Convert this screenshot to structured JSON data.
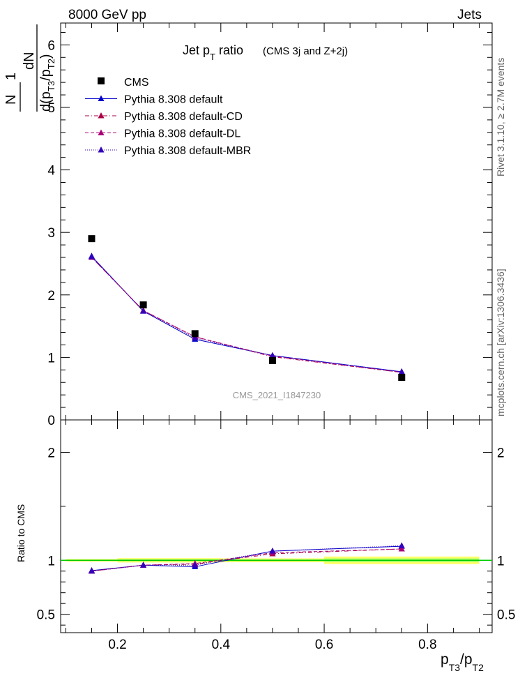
{
  "header": {
    "left": "8000 GeV pp",
    "right": "Jets"
  },
  "side_text": {
    "rivet": "Rivet 3.1.10, ≥ 2.7M events",
    "mcplots": "mcplots.cern.ch [arXiv:1306.3436]"
  },
  "watermark": "CMS_2021_I1847230",
  "colors": {
    "cms": "#000000",
    "default": "#0000cc",
    "cd": "#aa0044",
    "dl": "#aa0077",
    "mbr": "#3300bb",
    "ratio_line": "#00cc00",
    "band_outer": "#ffff66",
    "band_inner": "#aaff66"
  },
  "chart_data": [
    {
      "type": "line",
      "title": "Jet p_T ratio (CMS 3j and Z+2j)",
      "title_main": "Jet p",
      "title_sub": "T",
      "title_rest": " ratio",
      "title_note": "(CMS 3j and Z+2j)",
      "ylabel_top": "1",
      "ylabel_n": "N",
      "ylabel_dn": "dN",
      "ylabel_den": "d(p",
      "ylim": [
        0,
        6.35
      ],
      "xlim": [
        0.09,
        0.925
      ],
      "yticks": [
        0,
        1,
        2,
        3,
        4,
        5,
        6
      ],
      "ytick_labels": [
        "0",
        "1",
        "2",
        "3",
        "4",
        "5",
        "6"
      ],
      "x": [
        0.15,
        0.25,
        0.35,
        0.5,
        0.75
      ],
      "series": [
        {
          "name": "CMS",
          "values": [
            2.9,
            1.84,
            1.38,
            0.95,
            0.68
          ]
        },
        {
          "name": "Pythia 8.308 default",
          "values": [
            2.62,
            1.74,
            1.29,
            1.03,
            0.77
          ]
        },
        {
          "name": "Pythia 8.308 default-CD",
          "values": [
            2.6,
            1.75,
            1.33,
            1.01,
            0.76
          ]
        },
        {
          "name": "Pythia 8.308 default-DL",
          "values": [
            2.6,
            1.75,
            1.33,
            1.02,
            0.76
          ]
        },
        {
          "name": "Pythia 8.308 default-MBR",
          "values": [
            2.61,
            1.74,
            1.31,
            1.03,
            0.77
          ]
        }
      ]
    },
    {
      "type": "line",
      "ylabel": "Ratio to CMS",
      "xlabel_main": "p",
      "xlabel_sub1": "T3",
      "xlabel_mid": "/p",
      "xlabel_sub2": "T2",
      "ylim": [
        0.33,
        2.3
      ],
      "xlim": [
        0.09,
        0.925
      ],
      "yticks": [
        0.5,
        1,
        2
      ],
      "ytick_labels": [
        "0.5",
        "1",
        "2"
      ],
      "xticks": [
        0.2,
        0.4,
        0.6,
        0.8
      ],
      "xtick_labels": [
        "0.2",
        "0.4",
        "0.6",
        "0.8"
      ],
      "x": [
        0.15,
        0.25,
        0.35,
        0.5,
        0.75
      ],
      "series": [
        {
          "name": "Pythia 8.308 default",
          "values": [
            0.905,
            0.955,
            0.94,
            1.085,
            1.13
          ]
        },
        {
          "name": "Pythia 8.308 default-CD",
          "values": [
            0.9,
            0.955,
            0.965,
            1.06,
            1.105
          ]
        },
        {
          "name": "Pythia 8.308 default-DL",
          "values": [
            0.9,
            0.955,
            0.97,
            1.07,
            1.105
          ]
        },
        {
          "name": "Pythia 8.308 default-MBR",
          "values": [
            0.9,
            0.955,
            0.955,
            1.085,
            1.135
          ]
        }
      ]
    }
  ]
}
